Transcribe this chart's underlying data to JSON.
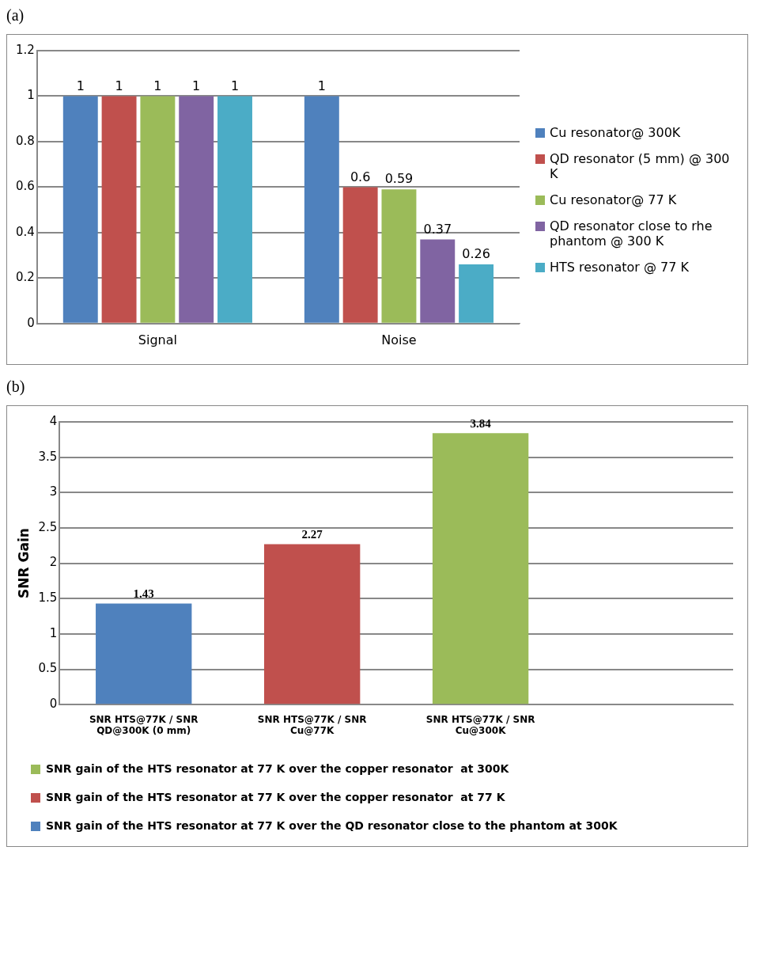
{
  "chart_data": [
    {
      "type": "bar",
      "title": "(a)",
      "categories": [
        "Signal",
        "Noise"
      ],
      "ylim": [
        0,
        1.2
      ],
      "yticks": [
        0,
        0.2,
        0.4,
        0.6,
        0.8,
        1,
        1.2
      ],
      "grid": "y",
      "legend": "right",
      "data_labels": true,
      "series": [
        {
          "name": "Cu resonator@ 300K",
          "color": "#4f81bd",
          "values": [
            1,
            1
          ]
        },
        {
          "name": "QD resonator (5 mm) @ 300 K",
          "color": "#c0504d",
          "values": [
            1,
            0.6
          ]
        },
        {
          "name": "Cu resonator@ 77 K",
          "color": "#9bbb59",
          "values": [
            1,
            0.59
          ]
        },
        {
          "name": "QD resonator close to rhe phantom  @ 300 K",
          "color": "#8064a2",
          "values": [
            1,
            0.37
          ]
        },
        {
          "name": "HTS resonator @ 77 K",
          "color": "#4bacc6",
          "values": [
            1,
            0.26
          ]
        }
      ]
    },
    {
      "type": "bar",
      "title": "(b)",
      "ylabel": "SNR Gain",
      "categories": [
        "SNR HTS@77K / SNR QD@300K (0 mm)",
        "SNR HTS@77K / SNR Cu@77K",
        "SNR HTS@77K / SNR Cu@300K",
        null
      ],
      "ylim": [
        0,
        4
      ],
      "yticks": [
        0,
        0.5,
        1,
        1.5,
        2,
        2.5,
        3,
        3.5,
        4
      ],
      "grid": "y",
      "legend": "bottom",
      "data_labels": true,
      "series": [
        {
          "name": "SNR gain of the HTS resonator at 77 K over the copper resonator  at 300K",
          "color": "#9bbb59",
          "values": [
            null,
            null,
            3.84,
            null
          ]
        },
        {
          "name": "SNR gain of the HTS resonator at 77 K over the copper resonator  at 77 K",
          "color": "#c0504d",
          "values": [
            null,
            2.27,
            null,
            null
          ]
        },
        {
          "name": "SNR gain of the HTS resonator at 77 K over the QD resonator close to the phantom at 300K",
          "color": "#4f81bd",
          "values": [
            1.43,
            null,
            null,
            null
          ]
        }
      ]
    }
  ]
}
